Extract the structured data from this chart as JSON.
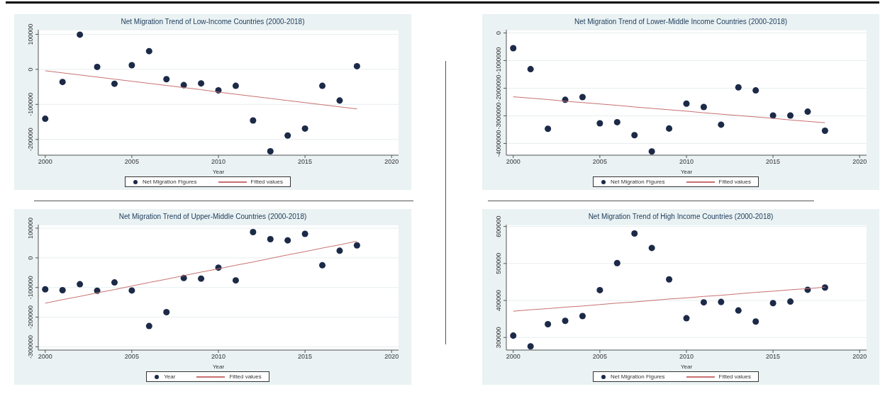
{
  "chart_data": [
    {
      "type": "scatter",
      "title": "Net Migration Trend of Low-Income Countries (2000-2018)",
      "xlabel": "Year",
      "x": [
        2000,
        2001,
        2002,
        2003,
        2004,
        2005,
        2006,
        2007,
        2008,
        2009,
        2010,
        2011,
        2012,
        2013,
        2014,
        2015,
        2016,
        2017,
        2018
      ],
      "series": [
        {
          "name": "Net Migration Figures",
          "color": "#1c2a48",
          "marker": "circle",
          "values": [
            -141000,
            -36000,
            99000,
            7000,
            -41000,
            12000,
            52000,
            -28000,
            -45000,
            -40000,
            -60000,
            -47000,
            -146000,
            -234000,
            -189000,
            -169000,
            -47000,
            -89000,
            9000
          ]
        },
        {
          "name": "Fitted values",
          "type": "line",
          "color": "#c87070",
          "marker": "none",
          "values": [
            -4000,
            -10000,
            -16000,
            -22000,
            -28000,
            -34000,
            -40000,
            -46000,
            -52000,
            -58000,
            -65000,
            -71000,
            -77000,
            -83000,
            -89000,
            -95000,
            -101000,
            -107000,
            -113000
          ]
        }
      ],
      "xlim": [
        1999.6,
        2020.4
      ],
      "xticks": [
        2000,
        2005,
        2010,
        2015,
        2020
      ],
      "ylim": [
        -245000,
        113000
      ],
      "yticks": [
        -200000,
        -100000,
        0,
        100000
      ],
      "grid": "y",
      "legend": "bottom"
    },
    {
      "type": "scatter",
      "title": "Net Migration Trend of Lower-Middle Income Countries (2000-2018)",
      "xlabel": "Year",
      "x": [
        2000,
        2001,
        2002,
        2003,
        2004,
        2005,
        2006,
        2007,
        2008,
        2009,
        2010,
        2011,
        2012,
        2013,
        2014,
        2015,
        2016,
        2017,
        2018
      ],
      "series": [
        {
          "name": "Net Migration Figures",
          "color": "#1c2a48",
          "marker": "circle",
          "values": [
            -550000,
            -1310000,
            -3470000,
            -2420000,
            -2320000,
            -3270000,
            -3230000,
            -3700000,
            -4290000,
            -3460000,
            -2560000,
            -2680000,
            -3320000,
            -1970000,
            -2080000,
            -2990000,
            -2990000,
            -2850000,
            -3540000
          ]
        },
        {
          "name": "Fitted values",
          "type": "line",
          "color": "#c87070",
          "marker": "none",
          "values": [
            -2310000,
            -2360000,
            -2410000,
            -2470000,
            -2520000,
            -2570000,
            -2620000,
            -2680000,
            -2730000,
            -2780000,
            -2830000,
            -2890000,
            -2940000,
            -2990000,
            -3040000,
            -3090000,
            -3150000,
            -3200000,
            -3250000
          ]
        }
      ],
      "xlim": [
        1999.6,
        2020.4
      ],
      "xticks": [
        2000,
        2005,
        2010,
        2015,
        2020
      ],
      "ylim": [
        -4425000,
        116000
      ],
      "yticks": [
        -4000000,
        -3000000,
        -2000000,
        -1000000,
        0
      ],
      "grid": "y",
      "legend": "bottom"
    },
    {
      "type": "scatter",
      "title": "Net Migration Trend of Upper-Middle Countries (2000-2018)",
      "xlabel": "Year",
      "x": [
        2000,
        2001,
        2002,
        2003,
        2004,
        2005,
        2006,
        2007,
        2008,
        2009,
        2010,
        2011,
        2012,
        2013,
        2014,
        2015,
        2016,
        2017,
        2018
      ],
      "series": [
        {
          "name": "Year",
          "color": "#1c2a48",
          "marker": "circle",
          "values": [
            -106000,
            -109000,
            -89000,
            -111000,
            -83000,
            -110000,
            -230000,
            -183000,
            -68000,
            -70000,
            -33000,
            -76000,
            87000,
            63000,
            59000,
            81000,
            -25000,
            24000,
            42000
          ]
        },
        {
          "name": "Fitted values",
          "type": "line",
          "color": "#c87070",
          "marker": "none",
          "values": [
            -153000,
            -141000,
            -130000,
            -118000,
            -107000,
            -95000,
            -83000,
            -72000,
            -60000,
            -48000,
            -37000,
            -25000,
            -14000,
            -2000,
            10000,
            21000,
            33000,
            44000,
            56000
          ]
        }
      ],
      "xlim": [
        1999.6,
        2020.4
      ],
      "xticks": [
        2000,
        2005,
        2010,
        2015,
        2020
      ],
      "ylim": [
        -311000,
        112000
      ],
      "yticks": [
        -300000,
        -200000,
        -100000,
        0,
        100000
      ],
      "grid": "y",
      "legend": "bottom"
    },
    {
      "type": "scatter",
      "title": "Net Migration Trend of High Income Countries (2000-2018)",
      "xlabel": "Year",
      "x": [
        2000,
        2001,
        2002,
        2003,
        2004,
        2005,
        2006,
        2007,
        2008,
        2009,
        2010,
        2011,
        2012,
        2013,
        2014,
        2015,
        2016,
        2017,
        2018
      ],
      "series": [
        {
          "name": "Net Migration Figures",
          "color": "#1c2a48",
          "marker": "circle",
          "values": [
            305000,
            276000,
            336000,
            345000,
            358000,
            428000,
            501000,
            581000,
            542000,
            457000,
            352000,
            395000,
            396000,
            373000,
            343000,
            393000,
            397000,
            429000,
            435000
          ]
        },
        {
          "name": "Fitted values",
          "type": "line",
          "color": "#c87070",
          "marker": "none",
          "values": [
            371000,
            375000,
            378000,
            382000,
            385000,
            389000,
            393000,
            396000,
            400000,
            404000,
            407000,
            411000,
            414000,
            418000,
            422000,
            425000,
            429000,
            432000,
            436000
          ]
        }
      ],
      "xlim": [
        1999.6,
        2020.4
      ],
      "xticks": [
        2000,
        2005,
        2010,
        2015,
        2020
      ],
      "ylim": [
        266000,
        605000
      ],
      "yticks": [
        300000,
        400000,
        500000,
        600000
      ],
      "grid": "y",
      "legend": "bottom"
    }
  ]
}
